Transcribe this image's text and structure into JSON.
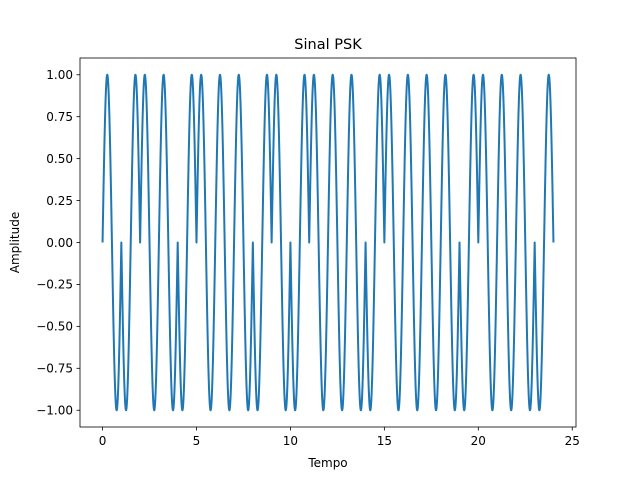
{
  "chart_data": {
    "type": "line",
    "title": "Sinal PSK",
    "xlabel": "Tempo",
    "ylabel": "Amplitude",
    "xlim": [
      -1.2,
      25.2
    ],
    "ylim": [
      -1.1,
      1.1
    ],
    "xticks": [
      0,
      5,
      10,
      15,
      20,
      25
    ],
    "xtick_labels": [
      "0",
      "5",
      "10",
      "15",
      "20",
      "25"
    ],
    "yticks": [
      -1.0,
      -0.75,
      -0.5,
      -0.25,
      0.0,
      0.25,
      0.5,
      0.75,
      1.0
    ],
    "ytick_labels": [
      "−1.00",
      "−0.75",
      "−0.50",
      "−0.25",
      "0.00",
      "0.25",
      "0.50",
      "0.75",
      "1.00"
    ],
    "grid": false,
    "series": [
      {
        "color": "#1f77b4",
        "signal": "psk",
        "carrier_cycles_per_unit": 1,
        "bit_duration": 1,
        "bits": [
          1,
          0,
          1,
          1,
          0,
          1,
          1,
          1,
          0,
          1,
          0,
          1,
          1,
          1,
          0,
          1,
          1,
          1,
          1,
          0,
          1,
          1,
          1,
          0
        ],
        "x_range": [
          0,
          24
        ]
      }
    ]
  }
}
